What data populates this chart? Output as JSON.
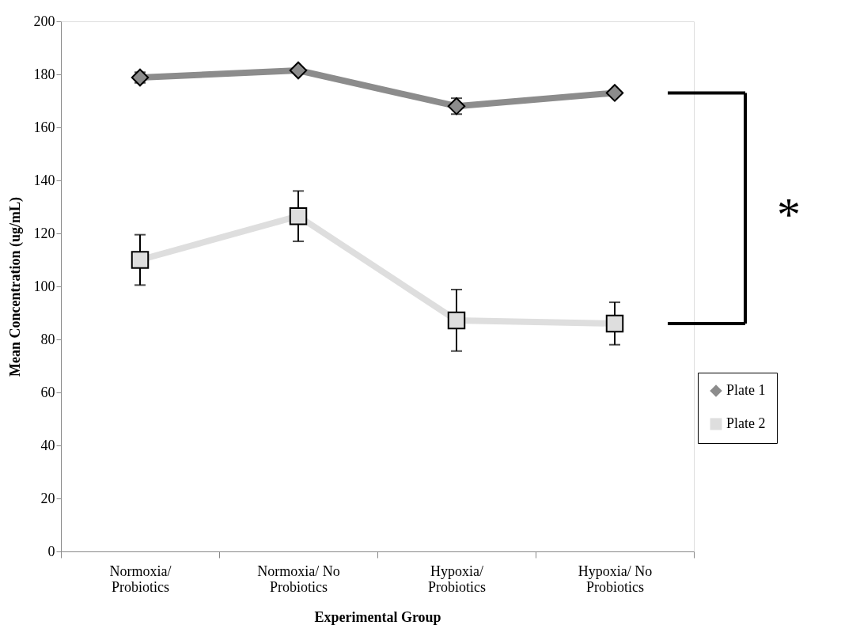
{
  "chart_data": {
    "type": "line",
    "xlabel": "Experimental Group",
    "ylabel": "Mean Concentration (ug/mL)",
    "categories": [
      "Normoxia/ Probiotics",
      "Normoxia/ No Probiotics",
      "Hypoxia/ Probiotics",
      "Hypoxia/ No Probiotics"
    ],
    "series": [
      {
        "name": "Plate 1",
        "color": "#8c8c8c",
        "marker": "diamond",
        "values": [
          178.8,
          181.5,
          168,
          173
        ],
        "errors": [
          2,
          null,
          3,
          null
        ]
      },
      {
        "name": "Plate 2",
        "color": "#dedede",
        "marker": "square",
        "values": [
          110,
          126.5,
          87.2,
          86
        ],
        "errors": [
          9.5,
          9.5,
          11.6,
          8
        ]
      }
    ],
    "ylim": [
      0,
      200
    ],
    "yticks": [
      0,
      20,
      40,
      60,
      80,
      100,
      120,
      140,
      160,
      180,
      200
    ],
    "grid": false,
    "legend": "right",
    "line_style": "solid",
    "annotations": [
      "*"
    ]
  }
}
